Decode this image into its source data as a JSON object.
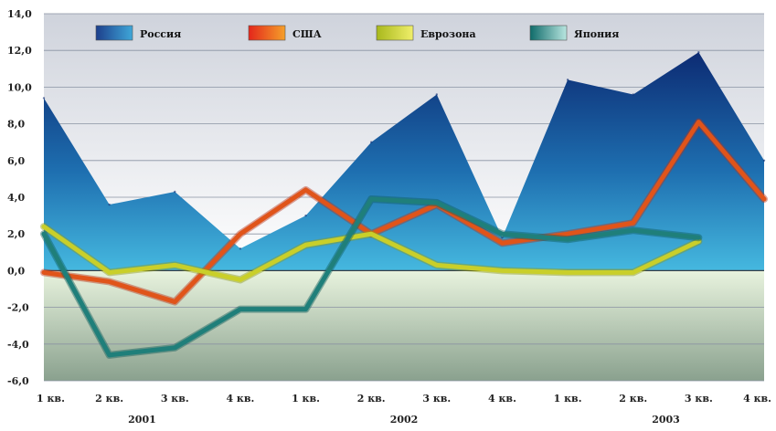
{
  "chart_data": {
    "type": "line",
    "categories": [
      "1 кв.",
      "2 кв.",
      "3 кв.",
      "4 кв.",
      "1 кв.",
      "2 кв.",
      "3 кв.",
      "4 кв.",
      "1 кв.",
      "2 кв.",
      "3 кв.",
      "4 кв."
    ],
    "years": [
      {
        "label": "2001",
        "from": 0,
        "to": 3
      },
      {
        "label": "2002",
        "from": 4,
        "to": 7
      },
      {
        "label": "2003",
        "from": 8,
        "to": 11
      }
    ],
    "ylim": [
      -6,
      14
    ],
    "yticks": [
      "-6,0",
      "-4,0",
      "-2,0",
      "0,0",
      "2,0",
      "4,0",
      "6,0",
      "8,0",
      "10,0",
      "12,0",
      "14,0"
    ],
    "grid": true,
    "legend_position": "top",
    "series": [
      {
        "name": "Россия",
        "type": "area",
        "color": "#1e4f9a",
        "values": [
          9.4,
          3.6,
          4.3,
          1.2,
          3.0,
          7.0,
          9.6,
          1.8,
          10.4,
          9.6,
          11.9,
          6.0
        ]
      },
      {
        "name": "США",
        "type": "line",
        "color": "#e0541a",
        "values": [
          -0.1,
          -0.6,
          -1.7,
          2.0,
          4.4,
          2.0,
          3.6,
          1.5,
          2.0,
          2.6,
          8.1,
          3.9
        ]
      },
      {
        "name": "Еврозона",
        "type": "line",
        "color": "#c9cf2a",
        "values": [
          2.4,
          -0.1,
          0.3,
          -0.5,
          1.4,
          2.0,
          0.3,
          0.0,
          -0.1,
          -0.1,
          1.6,
          null
        ]
      },
      {
        "name": "Япония",
        "type": "line",
        "color": "#1f7f7a",
        "values": [
          2.0,
          -4.6,
          -4.2,
          -2.1,
          -2.1,
          3.9,
          3.7,
          2.0,
          1.7,
          2.2,
          1.8,
          null
        ]
      }
    ]
  }
}
